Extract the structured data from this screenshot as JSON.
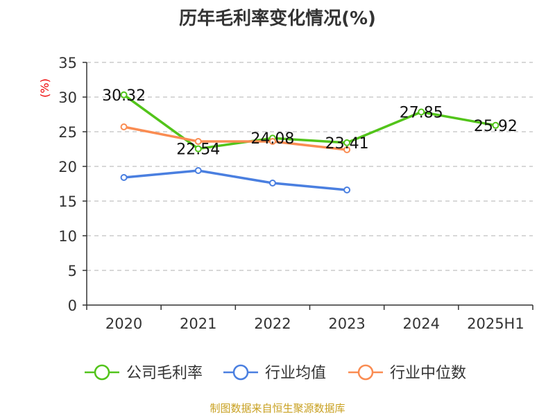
{
  "chart_data": {
    "type": "line",
    "title": "历年毛利率变化情况(%)",
    "ylabel": "(%)",
    "xlabel": "",
    "ylim": [
      0,
      35
    ],
    "yticks": [
      0,
      5,
      10,
      15,
      20,
      25,
      30,
      35
    ],
    "grid": true,
    "legend_placement": "bottom",
    "categories": [
      "2020",
      "2021",
      "2022",
      "2023",
      "2024",
      "2025H1"
    ],
    "series": [
      {
        "name": "公司毛利率",
        "color": "#52c41a",
        "values": [
          30.32,
          22.54,
          24.08,
          23.41,
          27.85,
          25.92
        ],
        "labels": [
          "30.32",
          "22.54",
          "24.08",
          "23.41",
          "27.85",
          "25.92"
        ]
      },
      {
        "name": "行业均值",
        "color": "#4a7fe0",
        "values": [
          18.4,
          19.4,
          17.6,
          16.6,
          null,
          null
        ]
      },
      {
        "name": "行业中位数",
        "color": "#fa8c52",
        "values": [
          25.7,
          23.6,
          23.6,
          22.4,
          null,
          null
        ]
      }
    ]
  },
  "source": "制图数据来自恒生聚源数据库"
}
